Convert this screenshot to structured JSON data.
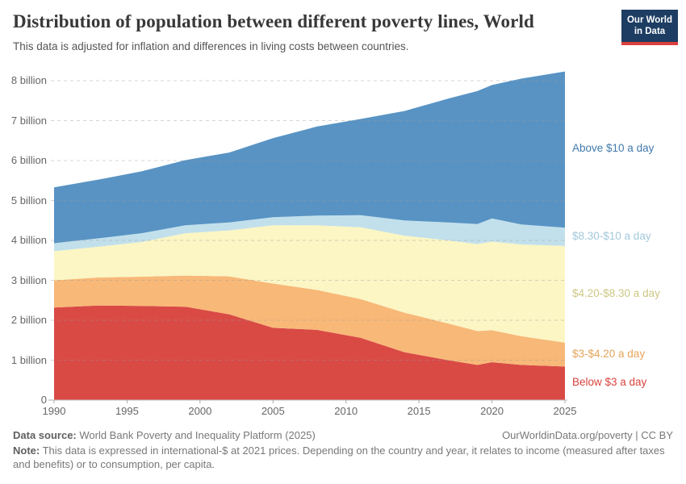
{
  "header": {
    "title": "Distribution of population between different poverty lines, World",
    "subtitle": "This data is adjusted for inflation and differences in living costs between countries."
  },
  "logo": {
    "line1": "Our World",
    "line2": "in Data"
  },
  "chart_data": {
    "type": "area",
    "stacked": true,
    "title": "Distribution of population between different poverty lines, World",
    "xlabel": "",
    "ylabel": "",
    "unit": "billion people",
    "grid": true,
    "legend_position": "right",
    "xlim": [
      1990,
      2025
    ],
    "ylim": [
      0,
      8.4
    ],
    "x": [
      1990,
      1993,
      1996,
      1999,
      2002,
      2005,
      2008,
      2011,
      2014,
      2017,
      2019,
      2020,
      2022,
      2025
    ],
    "series": [
      {
        "key": "below-3",
        "name": "Below $3 a day",
        "label": "Below $3 a day",
        "color": "#d94a45",
        "label_color": "#d7433d",
        "values": [
          2.32,
          2.37,
          2.36,
          2.34,
          2.15,
          1.81,
          1.76,
          1.56,
          1.2,
          1.0,
          0.88,
          0.95,
          0.88,
          0.84
        ]
      },
      {
        "key": "3-4-20",
        "name": "$3-$4.20 a day",
        "label": "$3-$4.20 a day",
        "color": "#f8b878",
        "label_color": "#e5a459",
        "values": [
          0.68,
          0.7,
          0.73,
          0.78,
          0.95,
          1.11,
          1.0,
          0.97,
          0.99,
          0.92,
          0.85,
          0.8,
          0.72,
          0.6
        ]
      },
      {
        "key": "4-20-8-30",
        "name": "$4.20-$8.30 a day",
        "label": "$4.20-$8.30 a day",
        "color": "#fbf6c4",
        "label_color": "#cdc684",
        "values": [
          0.73,
          0.77,
          0.87,
          1.06,
          1.15,
          1.46,
          1.62,
          1.8,
          1.93,
          2.08,
          2.18,
          2.22,
          2.3,
          2.42
        ]
      },
      {
        "key": "8-30-10",
        "name": "$8.30-$10 a day",
        "label": "$8.30-$10 a day",
        "color": "#c2e0eb",
        "label_color": "#a3c8db",
        "values": [
          0.2,
          0.21,
          0.22,
          0.2,
          0.2,
          0.2,
          0.24,
          0.3,
          0.38,
          0.45,
          0.5,
          0.58,
          0.5,
          0.46
        ]
      },
      {
        "key": "above-10",
        "name": "Above $10 a day",
        "label": "Above $10 a day",
        "color": "#5893c4",
        "label_color": "#4179ab",
        "values": [
          1.4,
          1.47,
          1.55,
          1.63,
          1.75,
          1.98,
          2.23,
          2.41,
          2.74,
          3.1,
          3.33,
          3.34,
          3.65,
          3.91
        ]
      }
    ],
    "yticks": [
      {
        "v": 0,
        "label": "0"
      },
      {
        "v": 1,
        "label": "1 billion"
      },
      {
        "v": 2,
        "label": "2 billion"
      },
      {
        "v": 3,
        "label": "3 billion"
      },
      {
        "v": 4,
        "label": "4 billion"
      },
      {
        "v": 5,
        "label": "5 billion"
      },
      {
        "v": 6,
        "label": "6 billion"
      },
      {
        "v": 7,
        "label": "7 billion"
      },
      {
        "v": 8,
        "label": "8 billion"
      }
    ],
    "xticks": [
      1990,
      1995,
      2000,
      2005,
      2010,
      2015,
      2020,
      2025
    ]
  },
  "footer": {
    "source_label": "Data source:",
    "source_text": " World Bank Poverty and Inequality Platform (2025)",
    "attribution": "OurWorldinData.org/poverty | CC BY",
    "note_label": "Note:",
    "note_text": " This data is expressed in international-$ at 2021 prices. Depending on the country and year, it relates to income (measured after taxes and benefits) or to consumption, per capita."
  }
}
